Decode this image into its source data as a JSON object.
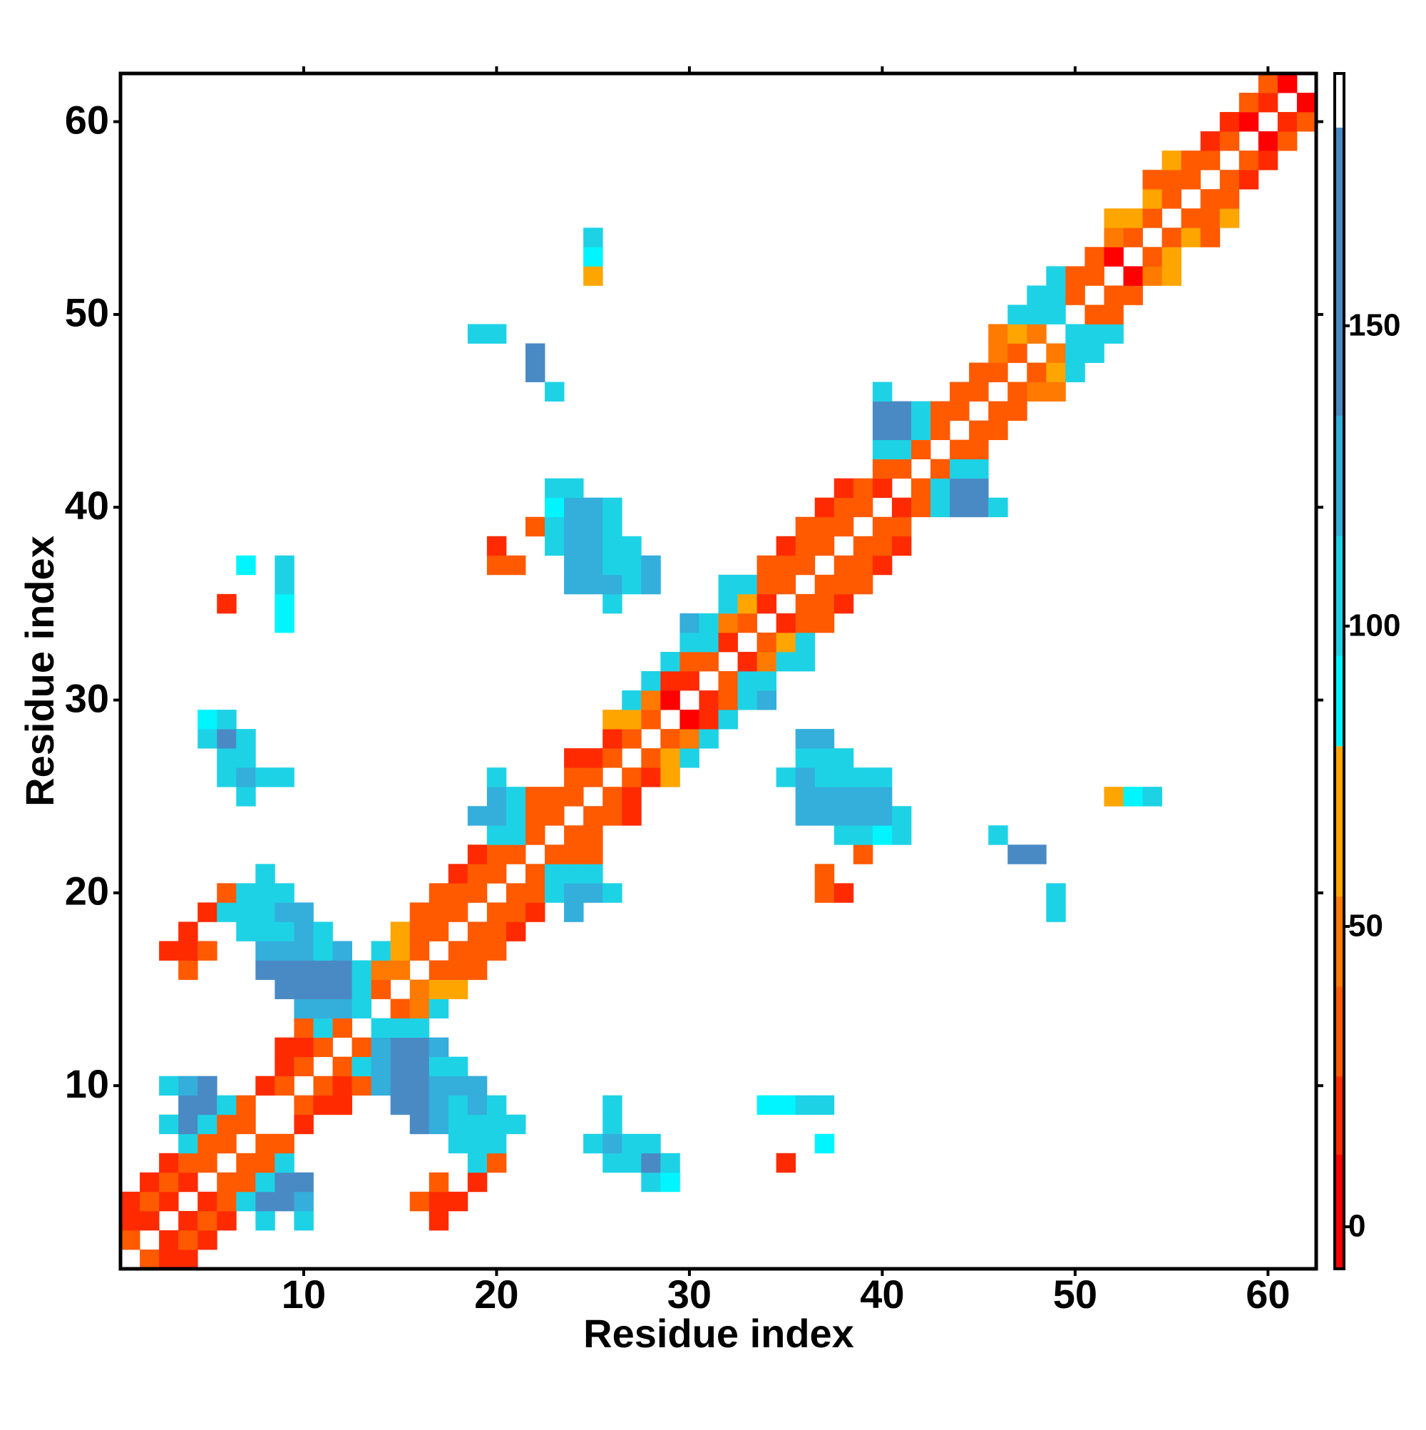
{
  "chart_data": {
    "type": "heatmap",
    "x_label": "Residue index",
    "y_label": "Residue index",
    "xlim": [
      0.5,
      62.5
    ],
    "ylim": [
      0.5,
      62.5
    ],
    "xticks": [
      10,
      20,
      30,
      40,
      50,
      60
    ],
    "yticks": [
      10,
      20,
      30,
      40,
      50,
      60
    ],
    "symmetric": true,
    "x": [
      2,
      3,
      4,
      3,
      4,
      5,
      4,
      5,
      6,
      8,
      10,
      17,
      5,
      6,
      7,
      8,
      9,
      10,
      16,
      17,
      18,
      6,
      7,
      8,
      9,
      10,
      17,
      19,
      28,
      29,
      7,
      8,
      9,
      19,
      20,
      26,
      27,
      28,
      29,
      35,
      8,
      9,
      18,
      19,
      20,
      25,
      26,
      27,
      28,
      37,
      10,
      16,
      17,
      18,
      19,
      20,
      21,
      26,
      10,
      11,
      12,
      15,
      16,
      17,
      18,
      19,
      20,
      26,
      34,
      35,
      36,
      37,
      11,
      12,
      13,
      14,
      15,
      16,
      17,
      18,
      19,
      12,
      13,
      14,
      15,
      16,
      17,
      18,
      13,
      14,
      15,
      16,
      17,
      14,
      15,
      16,
      15,
      16,
      17,
      16,
      17,
      18,
      17,
      18,
      19,
      18,
      19,
      20,
      19,
      20,
      21,
      20,
      21,
      22,
      24,
      49,
      21,
      22,
      23,
      24,
      25,
      26,
      37,
      38,
      49,
      22,
      23,
      24,
      25,
      37,
      23,
      24,
      25,
      39,
      47,
      48,
      24,
      25,
      38,
      39,
      40,
      41,
      46,
      25,
      26,
      27,
      36,
      37,
      38,
      39,
      40,
      41,
      26,
      27,
      36,
      37,
      38,
      39,
      40,
      52,
      53,
      54,
      27,
      28,
      29,
      35,
      36,
      37,
      38,
      39,
      40,
      28,
      29,
      30,
      36,
      37,
      38,
      29,
      30,
      31,
      36,
      37,
      30,
      31,
      32,
      31,
      32,
      33,
      34,
      32,
      33,
      34,
      33,
      34,
      35,
      36,
      34,
      35,
      36,
      35,
      36,
      37,
      36,
      37,
      38,
      37,
      38,
      39,
      38,
      39,
      40,
      39,
      40,
      41,
      40,
      41,
      41,
      42,
      43,
      44,
      45,
      46,
      42,
      43,
      44,
      45,
      43,
      44,
      45,
      44,
      45,
      45,
      46,
      46,
      47,
      47,
      48,
      49,
      48,
      49,
      50,
      49,
      50,
      51,
      50,
      51,
      52,
      51,
      52,
      52,
      53,
      53,
      54,
      55,
      54,
      55,
      55,
      56,
      57,
      56,
      57,
      58,
      57,
      58,
      58,
      59,
      59,
      60,
      60,
      61,
      61,
      62,
      62
    ],
    "y": [
      1,
      1,
      1,
      2,
      2,
      2,
      3,
      3,
      3,
      3,
      3,
      3,
      4,
      4,
      4,
      4,
      4,
      4,
      4,
      4,
      4,
      5,
      5,
      5,
      5,
      5,
      5,
      5,
      5,
      5,
      6,
      6,
      6,
      6,
      6,
      6,
      6,
      6,
      6,
      6,
      7,
      7,
      7,
      7,
      7,
      7,
      7,
      7,
      7,
      7,
      8,
      8,
      8,
      8,
      8,
      8,
      8,
      8,
      9,
      9,
      9,
      9,
      9,
      9,
      9,
      9,
      9,
      9,
      9,
      9,
      9,
      9,
      10,
      10,
      10,
      10,
      10,
      10,
      10,
      10,
      10,
      11,
      11,
      11,
      11,
      11,
      11,
      11,
      12,
      12,
      12,
      12,
      12,
      13,
      13,
      13,
      14,
      14,
      14,
      15,
      15,
      15,
      16,
      16,
      16,
      17,
      17,
      17,
      18,
      18,
      18,
      19,
      19,
      19,
      19,
      19,
      20,
      20,
      20,
      20,
      20,
      20,
      20,
      20,
      20,
      21,
      21,
      21,
      21,
      21,
      22,
      22,
      22,
      22,
      22,
      22,
      23,
      23,
      23,
      23,
      23,
      23,
      23,
      24,
      24,
      24,
      24,
      24,
      24,
      24,
      24,
      24,
      25,
      25,
      25,
      25,
      25,
      25,
      25,
      25,
      25,
      25,
      26,
      26,
      26,
      26,
      26,
      26,
      26,
      26,
      26,
      27,
      27,
      27,
      27,
      27,
      27,
      28,
      28,
      28,
      28,
      28,
      29,
      29,
      29,
      30,
      30,
      30,
      30,
      31,
      31,
      31,
      32,
      32,
      32,
      32,
      33,
      33,
      33,
      34,
      34,
      34,
      35,
      35,
      35,
      36,
      36,
      36,
      37,
      37,
      37,
      38,
      38,
      38,
      39,
      39,
      40,
      40,
      40,
      40,
      40,
      40,
      41,
      41,
      41,
      41,
      42,
      42,
      42,
      43,
      43,
      44,
      44,
      45,
      45,
      46,
      46,
      46,
      47,
      47,
      47,
      48,
      48,
      48,
      49,
      49,
      49,
      50,
      50,
      51,
      51,
      52,
      52,
      52,
      53,
      53,
      54,
      54,
      54,
      55,
      55,
      55,
      56,
      56,
      57,
      57,
      58,
      58,
      59,
      59,
      60,
      60,
      61
    ],
    "values": [
      40,
      25,
      25,
      25,
      30,
      15,
      25,
      40,
      15,
      110,
      110,
      20,
      20,
      40,
      110,
      150,
      155,
      120,
      35,
      20,
      15,
      40,
      40,
      110,
      150,
      150,
      35,
      20,
      100,
      90,
      40,
      35,
      110,
      110,
      35,
      115,
      115,
      160,
      100,
      20,
      40,
      40,
      110,
      110,
      110,
      115,
      130,
      115,
      115,
      90,
      20,
      155,
      120,
      115,
      115,
      115,
      110,
      110,
      40,
      15,
      15,
      150,
      150,
      120,
      115,
      120,
      110,
      110,
      90,
      95,
      115,
      110,
      35,
      15,
      40,
      120,
      150,
      150,
      120,
      120,
      120,
      30,
      100,
      130,
      155,
      150,
      110,
      110,
      35,
      130,
      150,
      150,
      120,
      110,
      110,
      105,
      40,
      50,
      100,
      45,
      60,
      60,
      40,
      35,
      35,
      40,
      35,
      35,
      35,
      35,
      20,
      40,
      30,
      20,
      120,
      115,
      35,
      40,
      115,
      130,
      120,
      115,
      30,
      15,
      115,
      40,
      110,
      105,
      105,
      30,
      40,
      35,
      35,
      40,
      160,
      155,
      40,
      30,
      115,
      115,
      95,
      115,
      115,
      40,
      35,
      20,
      125,
      125,
      125,
      120,
      120,
      115,
      35,
      20,
      130,
      120,
      130,
      120,
      120,
      60,
      95,
      105,
      30,
      20,
      60,
      115,
      120,
      115,
      115,
      115,
      115,
      40,
      60,
      100,
      115,
      115,
      110,
      40,
      50,
      115,
      120,
      135,
      10,
      20,
      110,
      15,
      30,
      110,
      120,
      35,
      100,
      115,
      15,
      55,
      110,
      110,
      30,
      60,
      100,
      15,
      35,
      35,
      40,
      35,
      20,
      40,
      35,
      35,
      40,
      40,
      20,
      40,
      30,
      15,
      35,
      30,
      15,
      40,
      110,
      140,
      145,
      115,
      40,
      110,
      150,
      150,
      40,
      110,
      110,
      40,
      40,
      40,
      35,
      40,
      40,
      40,
      45,
      45,
      35,
      60,
      110,
      45,
      110,
      110,
      110,
      115,
      110,
      40,
      40,
      40,
      40,
      10,
      50,
      60,
      35,
      60,
      35,
      60,
      40,
      40,
      40,
      65,
      40,
      40,
      40,
      15,
      40,
      15,
      10,
      35,
      15,
      35,
      10
    ],
    "colorbar": {
      "ylim": [
        -7,
        192
      ],
      "yticks": [
        0,
        50,
        100,
        150
      ],
      "levels": [
        12,
        25,
        40,
        55,
        80,
        95,
        115,
        135,
        183
      ],
      "colors": [
        "#ff0000",
        "#ff2a00",
        "#ff5a00",
        "#ff7a00",
        "#ffa500",
        "#00f5ff",
        "#1ed2e6",
        "#34aedb",
        "#4a8ac4",
        "#ffffff"
      ]
    }
  }
}
